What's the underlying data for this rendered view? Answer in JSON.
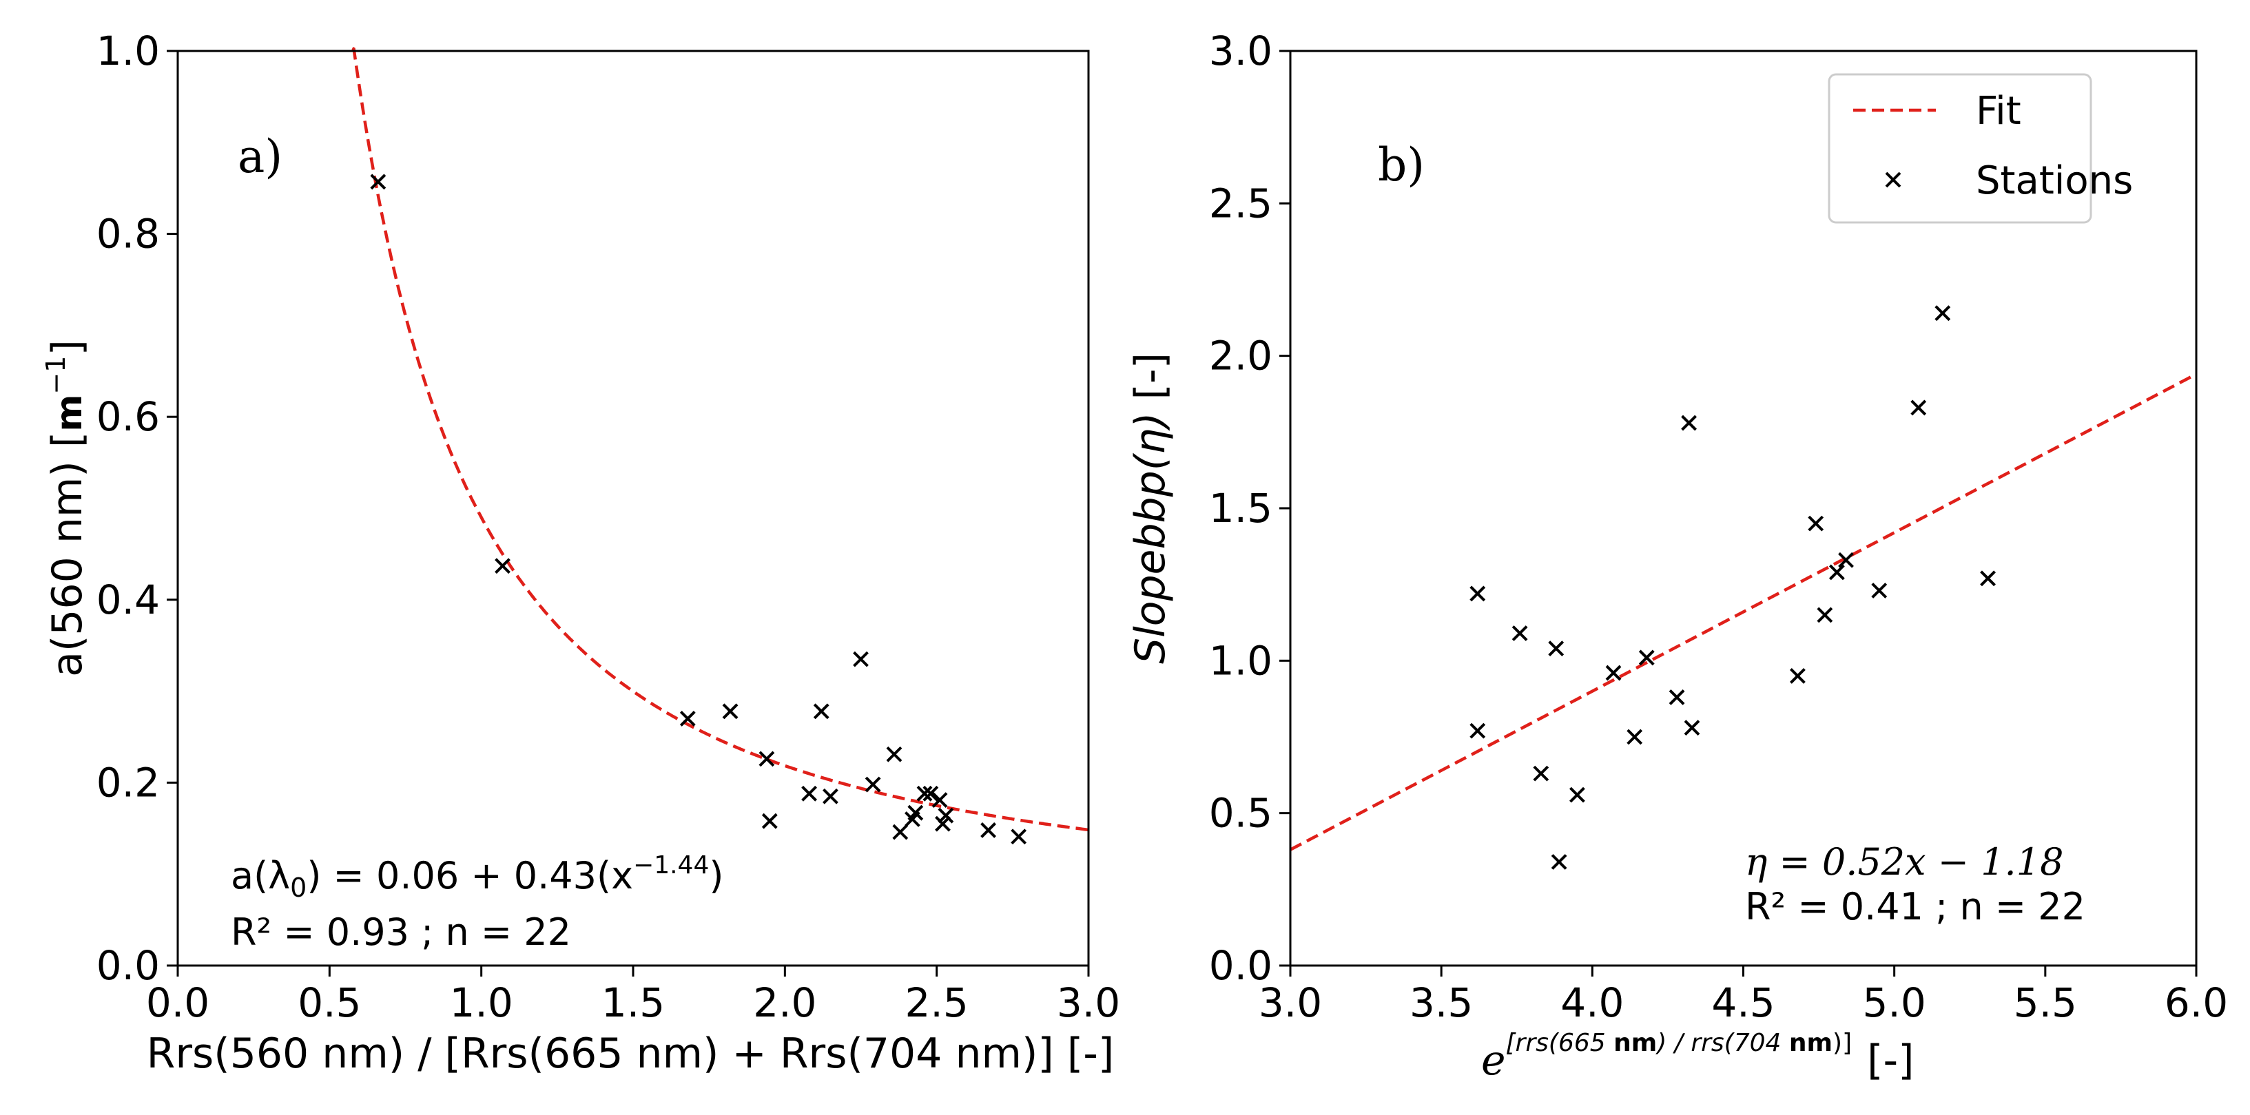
{
  "chart_data": [
    {
      "type": "scatter",
      "panel_label": "a)",
      "xlabel": "Rrs(560 nm) / [Rrs(665 nm) + Rrs(704 nm)] [-]",
      "ylabel_main": "a(560 nm) [",
      "ylabel_unit": "m",
      "ylabel_exp": "−1",
      "ylabel_close": "]",
      "xlim": [
        0.0,
        3.0
      ],
      "ylim": [
        0.0,
        1.0
      ],
      "xticks": [
        "0.0",
        "0.5",
        "1.0",
        "1.5",
        "2.0",
        "2.5",
        "3.0"
      ],
      "yticks": [
        "0.0",
        "0.2",
        "0.4",
        "0.6",
        "0.8",
        "1.0"
      ],
      "series": [
        {
          "name": "Stations",
          "marker": "x",
          "color": "#000000",
          "points": [
            [
              0.66,
              0.857
            ],
            [
              1.07,
              0.437
            ],
            [
              1.68,
              0.27
            ],
            [
              1.82,
              0.278
            ],
            [
              1.94,
              0.226
            ],
            [
              1.95,
              0.158
            ],
            [
              2.08,
              0.188
            ],
            [
              2.12,
              0.278
            ],
            [
              2.15,
              0.185
            ],
            [
              2.25,
              0.335
            ],
            [
              2.29,
              0.198
            ],
            [
              2.36,
              0.231
            ],
            [
              2.38,
              0.146
            ],
            [
              2.42,
              0.16
            ],
            [
              2.43,
              0.167
            ],
            [
              2.46,
              0.188
            ],
            [
              2.48,
              0.188
            ],
            [
              2.51,
              0.181
            ],
            [
              2.52,
              0.155
            ],
            [
              2.53,
              0.164
            ],
            [
              2.67,
              0.148
            ],
            [
              2.77,
              0.141
            ]
          ]
        },
        {
          "name": "Fit",
          "style": "dashed",
          "color": "#e0201a",
          "equation": {
            "a": 0.06,
            "b": 0.43,
            "exponent": -1.44
          }
        }
      ],
      "annotation_line1_main": "a(λ",
      "annotation_line1_sub": "0",
      "annotation_line1_mid": ") = 0.06 + 0.43(x",
      "annotation_line1_exp": "−1.44",
      "annotation_line1_end": ")",
      "annotation_line2": "R² = 0.93 ; n = 22"
    },
    {
      "type": "scatter",
      "panel_label": "b)",
      "xlabel_base": "e",
      "xlabel_exp_a": "[rrs(665 ",
      "xlabel_exp_b": "nm",
      "xlabel_exp_c": ") / rrs(704 ",
      "xlabel_exp_d": "nm",
      "xlabel_exp_e": ")]",
      "xlabel_suffix": "[-]",
      "ylabel_main": "Slopebbp(η)",
      "ylabel_suffix": "[-]",
      "xlim": [
        3.0,
        6.0
      ],
      "ylim": [
        0.0,
        3.0
      ],
      "xticks": [
        "3.0",
        "3.5",
        "4.0",
        "4.5",
        "5.0",
        "5.5",
        "6.0"
      ],
      "yticks": [
        "0.0",
        "0.5",
        "1.0",
        "1.5",
        "2.0",
        "2.5",
        "3.0"
      ],
      "series": [
        {
          "name": "Stations",
          "marker": "x",
          "color": "#000000",
          "points": [
            [
              3.62,
              1.22
            ],
            [
              3.62,
              0.77
            ],
            [
              3.76,
              1.09
            ],
            [
              3.83,
              0.63
            ],
            [
              3.88,
              1.04
            ],
            [
              3.89,
              0.34
            ],
            [
              3.95,
              0.56
            ],
            [
              4.07,
              0.96
            ],
            [
              4.14,
              0.75
            ],
            [
              4.18,
              1.01
            ],
            [
              4.28,
              0.88
            ],
            [
              4.32,
              1.78
            ],
            [
              4.33,
              0.78
            ],
            [
              4.68,
              0.95
            ],
            [
              4.74,
              1.45
            ],
            [
              4.77,
              1.15
            ],
            [
              4.81,
              1.29
            ],
            [
              4.84,
              1.33
            ],
            [
              4.95,
              1.23
            ],
            [
              5.08,
              1.83
            ],
            [
              5.16,
              2.14
            ],
            [
              5.31,
              1.27
            ]
          ]
        },
        {
          "name": "Fit",
          "style": "dashed",
          "color": "#e0201a",
          "equation": {
            "slope": 0.52,
            "intercept": -1.18
          }
        }
      ],
      "legend": {
        "position": "top-right",
        "fit_label": "Fit",
        "stations_label": "Stations"
      },
      "annotation_line1": "η = 0.52x − 1.18",
      "annotation_line2": "R² = 0.41 ; n = 22"
    }
  ]
}
